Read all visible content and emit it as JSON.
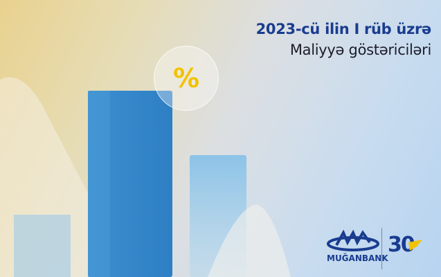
{
  "header": {
    "title_line1": "2023-cü ilin I rüb üzrə",
    "title_line2": "Maliyyə göstəriciləri"
  },
  "badge": {
    "symbol": "%",
    "color": "#f2c200"
  },
  "brand": {
    "name": "MUĞANBANK",
    "anniversary": "30",
    "color": "#1a3c8f"
  }
}
